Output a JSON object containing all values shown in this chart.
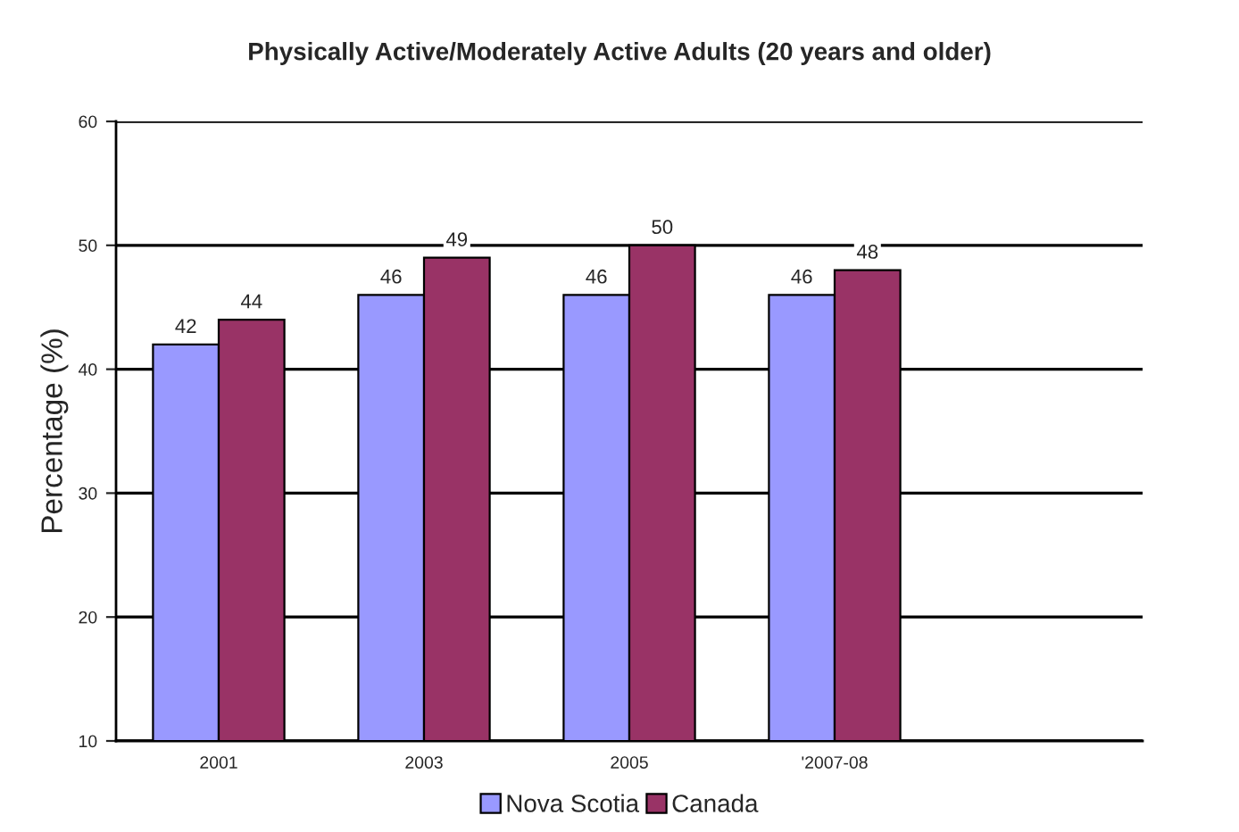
{
  "chart_data": {
    "type": "bar",
    "title": "Physically Active/Moderately Active Adults (20 years and older)",
    "ylabel": "Percentage (%)",
    "categories": [
      "2001",
      "2003",
      "2005",
      "'2007-08",
      null
    ],
    "series": [
      {
        "name": "Nova Scotia",
        "color": "#9999ff",
        "values": [
          42,
          46,
          46,
          46,
          null
        ]
      },
      {
        "name": "Canada",
        "color": "#993366",
        "values": [
          44,
          49,
          50,
          48,
          null
        ]
      }
    ],
    "ylim": [
      10,
      60
    ],
    "yticks": [
      10,
      20,
      30,
      40,
      50,
      60
    ],
    "grid": "y",
    "legend": "bottom",
    "data_labels": true
  }
}
